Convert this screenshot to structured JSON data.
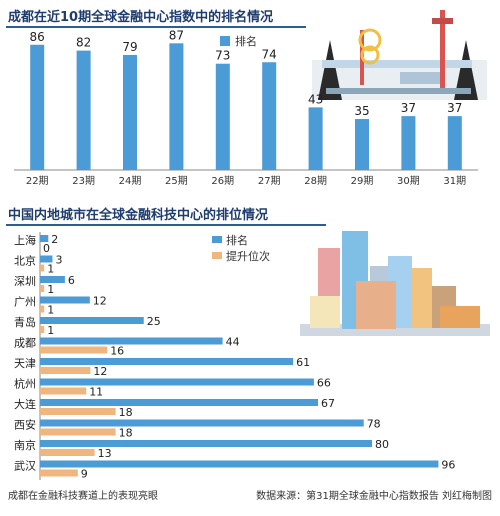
{
  "chart_data": [
    {
      "type": "bar",
      "title": "成都在近10期全球金融中心指数中的排名情况",
      "legend": [
        "排名"
      ],
      "legend_placement": "top",
      "categories": [
        "22期",
        "23期",
        "24期",
        "25期",
        "26期",
        "27期",
        "28期",
        "29期",
        "30期",
        "31期"
      ],
      "series": [
        {
          "name": "排名",
          "values": [
            86,
            82,
            79,
            87,
            73,
            74,
            43,
            35,
            37,
            37
          ]
        }
      ],
      "ylim": [
        0,
        100
      ],
      "grid": false,
      "colors": {
        "bar": "#4a9bd6"
      }
    },
    {
      "type": "bar",
      "orientation": "horizontal",
      "title": "中国内地城市在全球金融科技中心的排位情况",
      "legend": [
        "排名",
        "提升位次"
      ],
      "legend_placement": "top-center",
      "categories": [
        "上海",
        "北京",
        "深圳",
        "广州",
        "青岛",
        "成都",
        "天津",
        "杭州",
        "大连",
        "西安",
        "南京",
        "武汉"
      ],
      "series": [
        {
          "name": "排名",
          "values": [
            2,
            3,
            6,
            12,
            25,
            44,
            61,
            66,
            67,
            78,
            80,
            96
          ]
        },
        {
          "name": "提升位次",
          "values": [
            0,
            1,
            1,
            1,
            1,
            16,
            12,
            11,
            18,
            18,
            13,
            9
          ]
        }
      ],
      "xlim": [
        0,
        100
      ],
      "grid": false,
      "colors": {
        "rank": "#4a9bd6",
        "lift": "#f0b67f"
      }
    }
  ],
  "footer": {
    "left": "成都在金融科技赛道上的表现亮眼",
    "right": "数据来源：第31期全球金融中心指数报告 刘红梅制图"
  }
}
